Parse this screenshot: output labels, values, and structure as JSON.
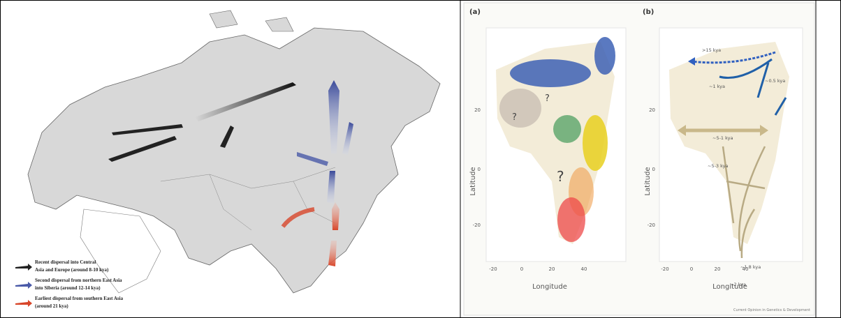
{
  "left_figure": {
    "legend": [
      {
        "lines": [
          "Recent dispersal into Central",
          "Asia and Europe (around 8-10 kya)"
        ]
      },
      {
        "lines": [
          "Second dispersal from northern East Asia",
          "into Siberia (around 12-14 kya)"
        ]
      },
      {
        "lines": [
          "Earliest dispersal from southern East Asia",
          "(around 21 kya)"
        ]
      }
    ]
  },
  "right_figure": {
    "panels": [
      {
        "label": "(a)",
        "question_marks": [
          "?",
          "?",
          "?"
        ],
        "x_axis_label": "Longitude",
        "y_axis_label": "Latitude",
        "x_ticks": [
          "-20",
          "0",
          "20",
          "40"
        ],
        "y_ticks": [
          "20",
          "0",
          "-20"
        ]
      },
      {
        "label": "(b)",
        "annotations": [
          ">15 kya",
          "~1 kya",
          "~0.5 kya",
          "~5-1 kya",
          "~5-3 kya",
          "~1.8 kya",
          "~2 kya"
        ],
        "x_axis_label": "Longitude",
        "y_axis_label": "Latitude",
        "x_ticks": [
          "-20",
          "0",
          "20",
          "40"
        ],
        "y_ticks": [
          "20",
          "0",
          "-20"
        ]
      }
    ],
    "credit": "Current Opinion in Genetics & Development"
  }
}
